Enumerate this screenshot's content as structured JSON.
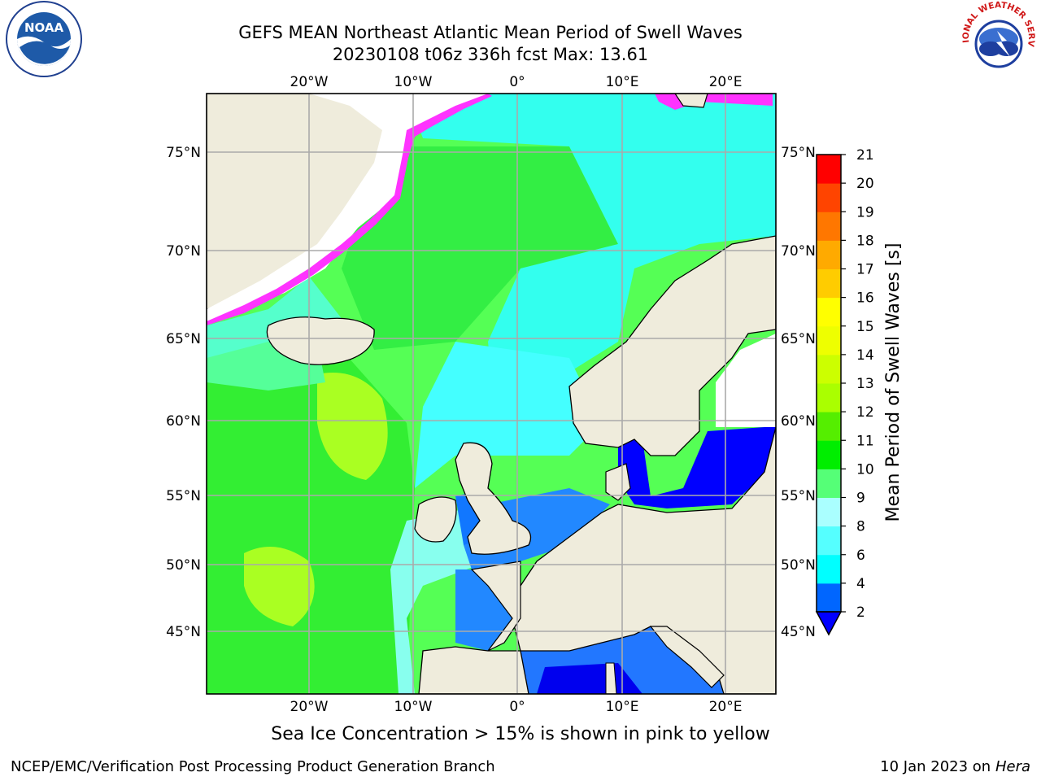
{
  "title": {
    "line1": "GEFS MEAN Northeast Atlantic Mean Period of Swell Waves",
    "line2": "20230108 t06z 336h fcst   Max: 13.61"
  },
  "map": {
    "lon_ticks_top": [
      "20°W",
      "10°W",
      "0°",
      "10°E",
      "20°E"
    ],
    "lon_ticks_bottom": [
      "20°W",
      "10°W",
      "0°",
      "10°E",
      "20°E"
    ],
    "lat_ticks_left": [
      "75°N",
      "70°N",
      "65°N",
      "60°N",
      "55°N",
      "50°N",
      "45°N"
    ],
    "lat_ticks_right": [
      "75°N",
      "70°N",
      "65°N",
      "60°N",
      "55°N",
      "50°N",
      "45°N"
    ],
    "land_color": "#efecdc",
    "ocean_colors": {
      "deep_blue": "#0000ff",
      "blue": "#0066ff",
      "cyan": "#00ffff",
      "light_cyan": "#55ffff",
      "green": "#00ff00",
      "light_green": "#55ff55",
      "yellow_green": "#aaff00",
      "ice_pink": "#ff33ff"
    }
  },
  "colorbar": {
    "label": "Mean Period of Swell Waves [s]",
    "ticks": [
      "2",
      "4",
      "6",
      "8",
      "9",
      "10",
      "11",
      "12",
      "13",
      "14",
      "15",
      "16",
      "17",
      "18",
      "19",
      "20",
      "21"
    ],
    "colors": [
      "#0066ff",
      "#00ccff",
      "#00ffff",
      "#55ffff",
      "#aaffff",
      "#55ff77",
      "#00ee00",
      "#55ee00",
      "#aaff00",
      "#ccff00",
      "#eeff00",
      "#ffff00",
      "#ffcc00",
      "#ffaa00",
      "#ff7700",
      "#ff4400",
      "#ff0000"
    ],
    "under_color": "#0000ff"
  },
  "subtitle": "Sea Ice Concentration > 15% is shown in pink to yellow",
  "footer": {
    "left": "NCEP/EMC/Verification Post Processing Product Generation Branch",
    "right_prefix": "10 Jan 2023 on ",
    "right_host": "Hera"
  },
  "logos": {
    "noaa": "NOAA",
    "nws": "NATIONAL WEATHER SERVICE"
  }
}
